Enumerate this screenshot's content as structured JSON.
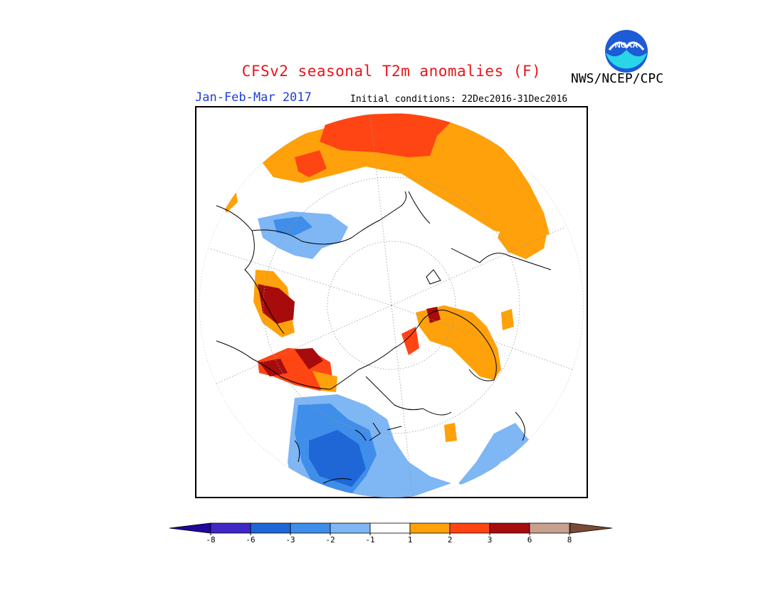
{
  "header": {
    "title": "CFSv2 seasonal T2m anomalies (F)",
    "period": "Jan-Feb-Mar 2017",
    "initial_conditions": "Initial conditions: 22Dec2016-31Dec2016",
    "agency": "NWS/NCEP/CPC",
    "logo_text": "NOAA"
  },
  "colorbar": {
    "tick_labels": [
      "-8",
      "-6",
      "-3",
      "-2",
      "-1",
      "1",
      "2",
      "3",
      "6",
      "8"
    ],
    "colors": [
      "#3f28c4",
      "#1f66d6",
      "#3f8eea",
      "#7fb6f4",
      "#ffffff",
      "#ffa10a",
      "#ff4513",
      "#a80b0b",
      "#c8a08f"
    ],
    "under_color": "#21079c",
    "over_color": "#7b4a37"
  },
  "map": {
    "projection": "north polar stereographic",
    "warm_light": "#ffa10a",
    "warm_mid": "#ff4513",
    "warm_dark": "#a80b0b",
    "cool_light": "#7fb6f4",
    "cool_mid": "#3f8eea",
    "cool_dark": "#1f66d6"
  }
}
